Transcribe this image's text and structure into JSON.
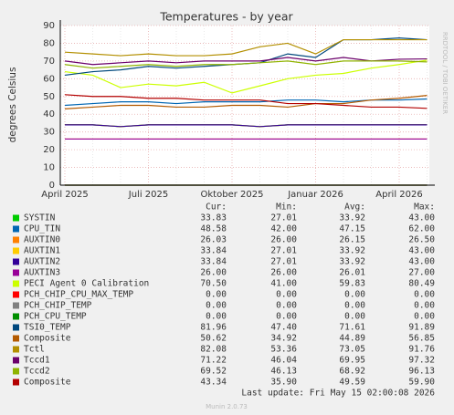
{
  "chart_data": {
    "type": "line",
    "title": "Temperatures - by year",
    "y_label": "degrees Celsius",
    "side_label": "RRDTOOL / TOBI OETIKER",
    "categories": [
      "April 2025",
      null,
      null,
      "Juli 2025",
      null,
      null,
      "Oktober 2025",
      null,
      null,
      "Januar 2026",
      null,
      null,
      "April 2026",
      null
    ],
    "ylim": [
      0,
      90
    ],
    "yticks": [
      0,
      10,
      20,
      30,
      40,
      50,
      60,
      70,
      80,
      90
    ],
    "grid": true,
    "legend_headers": [
      "Cur:",
      "Min:",
      "Avg:",
      "Max:"
    ],
    "series": [
      {
        "name": "SYSTIN",
        "color": "#00cc00",
        "values": [
          34,
          34,
          33,
          34,
          34,
          34,
          34,
          33,
          34,
          34,
          34,
          34,
          34,
          34
        ],
        "cur": "33.83",
        "min": "27.01",
        "avg": "33.92",
        "max": "43.00"
      },
      {
        "name": "CPU_TIN",
        "color": "#0066b3",
        "values": [
          45,
          46,
          47,
          47,
          46,
          47,
          47,
          47,
          48,
          48,
          47,
          48,
          48,
          48.6
        ],
        "cur": "48.58",
        "min": "42.00",
        "avg": "47.15",
        "max": "62.00"
      },
      {
        "name": "AUXTIN0",
        "color": "#ff8000",
        "values": [
          26,
          26,
          26,
          26,
          26,
          26,
          26,
          26,
          26,
          26,
          26,
          26,
          26,
          26
        ],
        "cur": "26.03",
        "min": "26.00",
        "avg": "26.15",
        "max": "26.50"
      },
      {
        "name": "AUXTIN1",
        "color": "#ffcc00",
        "values": [
          34,
          34,
          33,
          34,
          34,
          34,
          34,
          33,
          34,
          34,
          34,
          34,
          34,
          34
        ],
        "cur": "33.84",
        "min": "27.01",
        "avg": "33.92",
        "max": "43.00"
      },
      {
        "name": "AUXTIN2",
        "color": "#330099",
        "values": [
          34,
          34,
          33,
          34,
          34,
          34,
          34,
          33,
          34,
          34,
          34,
          34,
          34,
          34
        ],
        "cur": "33.84",
        "min": "27.01",
        "avg": "33.92",
        "max": "43.00"
      },
      {
        "name": "AUXTIN3",
        "color": "#990099",
        "values": [
          26,
          26,
          26,
          26,
          26,
          26,
          26,
          26,
          26,
          26,
          26,
          26,
          26,
          26
        ],
        "cur": "26.00",
        "min": "26.00",
        "avg": "26.01",
        "max": "27.00"
      },
      {
        "name": "PECI Agent 0 Calibration",
        "color": "#ccff00",
        "values": [
          64,
          62,
          55,
          57,
          56,
          58,
          52,
          56,
          60,
          62,
          63,
          66,
          68,
          70.5
        ],
        "cur": "70.50",
        "min": "41.00",
        "avg": "59.83",
        "max": "80.49"
      },
      {
        "name": "PCH_CHIP_CPU_MAX_TEMP",
        "color": "#ff0000",
        "values": [
          0,
          0,
          0,
          0,
          0,
          0,
          0,
          0,
          0,
          0,
          0,
          0,
          0,
          0
        ],
        "cur": "0.00",
        "min": "0.00",
        "avg": "0.00",
        "max": "0.00"
      },
      {
        "name": "PCH_CHIP_TEMP",
        "color": "#808080",
        "values": [
          0,
          0,
          0,
          0,
          0,
          0,
          0,
          0,
          0,
          0,
          0,
          0,
          0,
          0
        ],
        "cur": "0.00",
        "min": "0.00",
        "avg": "0.00",
        "max": "0.00"
      },
      {
        "name": "PCH_CPU_TEMP",
        "color": "#008f00",
        "values": [
          0,
          0,
          0,
          0,
          0,
          0,
          0,
          0,
          0,
          0,
          0,
          0,
          0,
          0
        ],
        "cur": "0.00",
        "min": "0.00",
        "avg": "0.00",
        "max": "0.00"
      },
      {
        "name": "TSI0_TEMP",
        "color": "#00487d",
        "values": [
          62,
          64,
          65,
          67,
          66,
          67,
          68,
          69,
          74,
          72,
          82,
          82,
          83,
          82
        ],
        "cur": "81.96",
        "min": "47.40",
        "avg": "71.61",
        "max": "91.89"
      },
      {
        "name": "Composite",
        "color": "#b35a00",
        "values": [
          43,
          44,
          45,
          45,
          44,
          44,
          45,
          45,
          44,
          46,
          46,
          48,
          49,
          50.6
        ],
        "cur": "50.62",
        "min": "34.92",
        "avg": "44.89",
        "max": "56.85"
      },
      {
        "name": "Tctl",
        "color": "#b38f00",
        "values": [
          75,
          74,
          73,
          74,
          73,
          73,
          74,
          78,
          80,
          74,
          82,
          82,
          82,
          82
        ],
        "cur": "82.08",
        "min": "53.36",
        "avg": "73.05",
        "max": "91.76"
      },
      {
        "name": "Tccd1",
        "color": "#6b006b",
        "values": [
          70,
          68,
          69,
          70,
          69,
          70,
          70,
          70,
          72,
          70,
          72,
          70,
          71,
          71.2
        ],
        "cur": "71.22",
        "min": "46.04",
        "avg": "69.95",
        "max": "97.32"
      },
      {
        "name": "Tccd2",
        "color": "#8fb300",
        "values": [
          68,
          66,
          67,
          68,
          67,
          68,
          68,
          69,
          70,
          68,
          70,
          70,
          70,
          69.5
        ],
        "cur": "69.52",
        "min": "46.13",
        "avg": "68.92",
        "max": "96.13"
      },
      {
        "name": "Composite",
        "color": "#b30000",
        "values": [
          51,
          50,
          50,
          49,
          49,
          48,
          48,
          48,
          46,
          46,
          45,
          44,
          44,
          43.3
        ],
        "cur": "43.34",
        "min": "35.90",
        "avg": "49.59",
        "max": "59.90"
      }
    ],
    "footer": "Last update: Fri May 15 02:00:08 2026",
    "version": "Munin 2.0.73"
  }
}
